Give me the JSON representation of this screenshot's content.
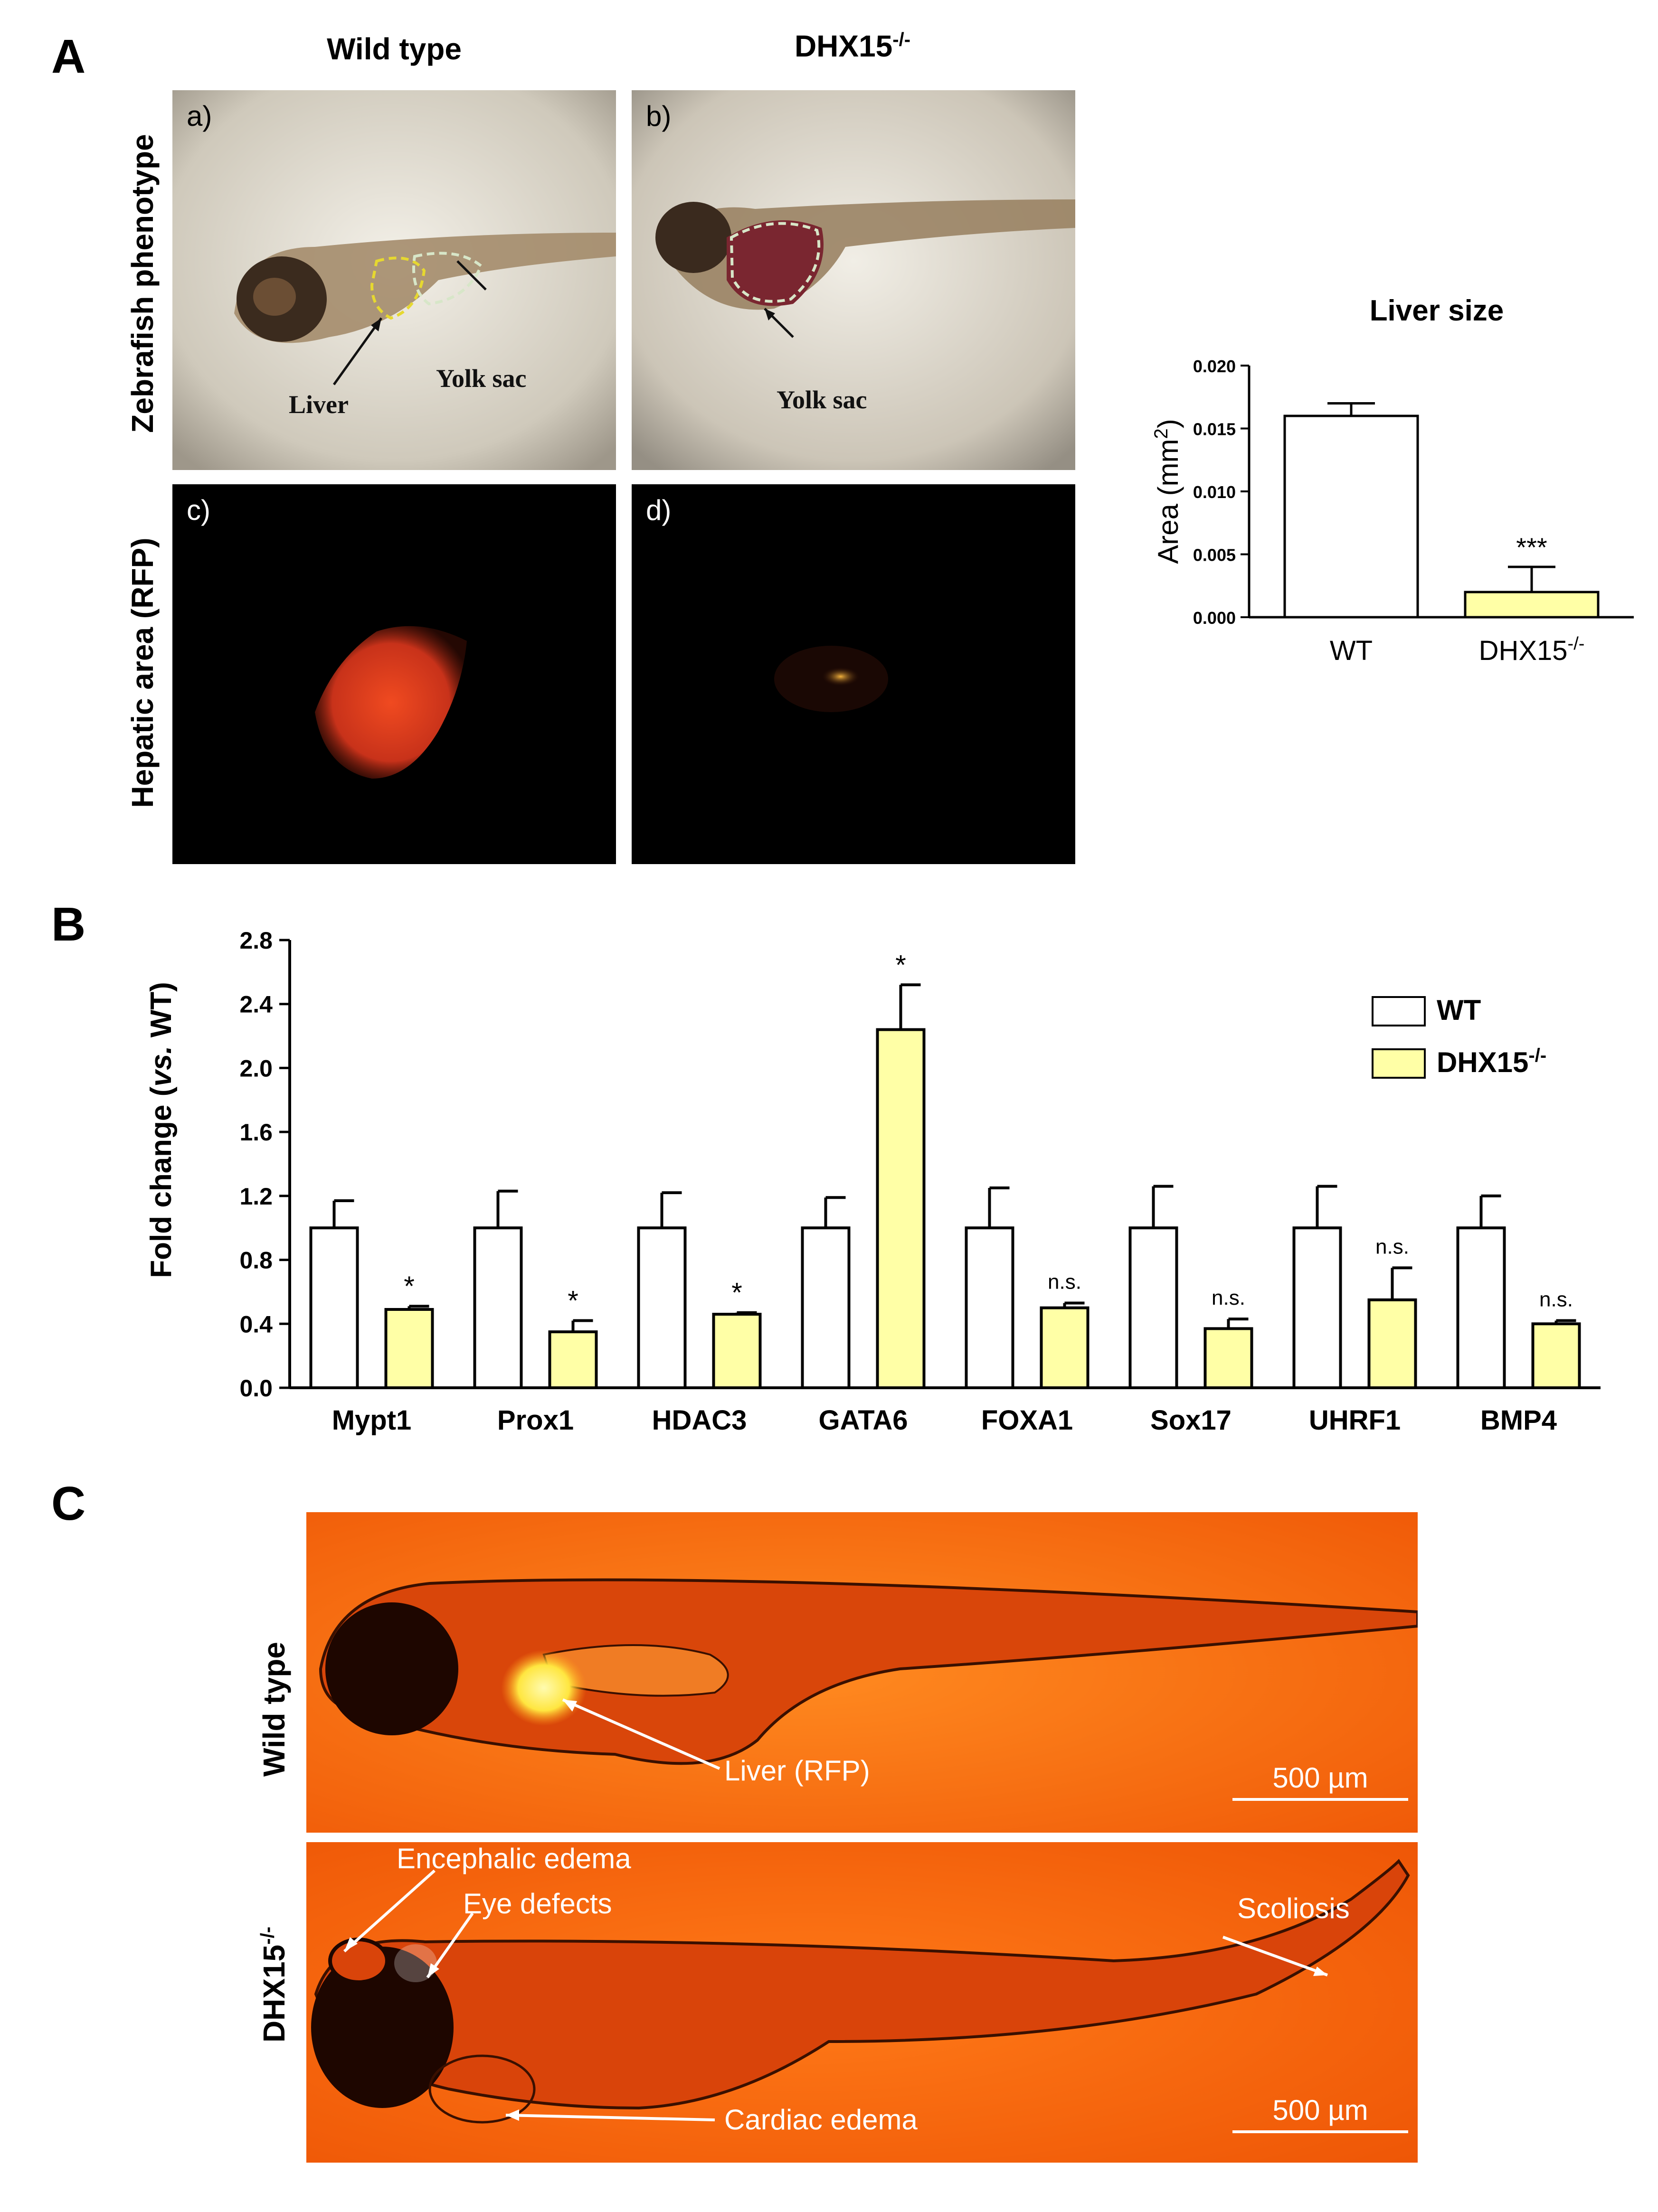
{
  "panels": {
    "A": {
      "letter": "A",
      "col_titles": [
        "Wild type",
        "DHX15"
      ],
      "col_title_sup": "-/-",
      "row_titles": [
        "Zebrafish phenotype",
        "Hepatic area (RFP)"
      ],
      "sub_labels": [
        "a)",
        "b)",
        "c)",
        "d)"
      ],
      "annotations": {
        "liver": "Liver",
        "yolk_a": "Yolk sac",
        "yolk_b": "Yolk sac"
      }
    },
    "B": {
      "letter": "B"
    },
    "C": {
      "letter": "C",
      "row_titles": [
        "Wild type",
        "DHX15"
      ],
      "row_title_sup": "-/-",
      "annotations": {
        "liver": "Liver (RFP)",
        "encephalic": "Encephalic edema",
        "eye": "Eye defects",
        "scoliosis": "Scoliosis",
        "cardiac": "Cardiac edema"
      },
      "scale_bar": "500 µm"
    }
  },
  "chart_data": [
    {
      "type": "bar",
      "title": "Liver size",
      "ylabel": "Area (mm",
      "ylabel_sup": "2",
      "ylabel_end": ")",
      "categories": [
        "WT",
        "DHX15"
      ],
      "category_sup": "-/-",
      "values": [
        0.016,
        0.002
      ],
      "errors": [
        0.001,
        0.002
      ],
      "colors": [
        "#ffffff",
        "#ffffa6"
      ],
      "significance": [
        "",
        "***"
      ],
      "ylim": [
        0,
        0.02
      ],
      "yticks": [
        "0.000",
        "0.005",
        "0.010",
        "0.015",
        "0.020"
      ],
      "ytick_values": [
        0,
        0.005,
        0.01,
        0.015,
        0.02
      ]
    },
    {
      "type": "bar",
      "ylabel": "Fold change (",
      "ylabel_italic": "vs.",
      "ylabel_end": " WT)",
      "categories": [
        "Mypt1",
        "Prox1",
        "HDAC3",
        "GATA6",
        "FOXA1",
        "Sox17",
        "UHRF1",
        "BMP4"
      ],
      "series": [
        {
          "name": "WT",
          "color": "#ffffff",
          "values": [
            1.0,
            1.0,
            1.0,
            1.0,
            1.0,
            1.0,
            1.0,
            1.0
          ],
          "errors": [
            0.17,
            0.23,
            0.22,
            0.19,
            0.25,
            0.26,
            0.26,
            0.2
          ]
        },
        {
          "name": "DHX15",
          "name_sup": "-/-",
          "color": "#ffffa6",
          "values": [
            0.49,
            0.35,
            0.46,
            2.24,
            0.5,
            0.37,
            0.55,
            0.4
          ],
          "errors": [
            0.02,
            0.07,
            0.01,
            0.28,
            0.03,
            0.06,
            0.2,
            0.02
          ]
        }
      ],
      "significance": [
        "*",
        "*",
        "*",
        "*",
        "n.s.",
        "n.s.",
        "n.s.",
        "n.s."
      ],
      "ylim": [
        0,
        2.8
      ],
      "yticks": [
        "0.0",
        "0.4",
        "0.8",
        "1.2",
        "1.6",
        "2.0",
        "2.4",
        "2.8"
      ],
      "ytick_values": [
        0,
        0.4,
        0.8,
        1.2,
        1.6,
        2.0,
        2.4,
        2.8
      ],
      "legend_position": "top-right"
    }
  ]
}
